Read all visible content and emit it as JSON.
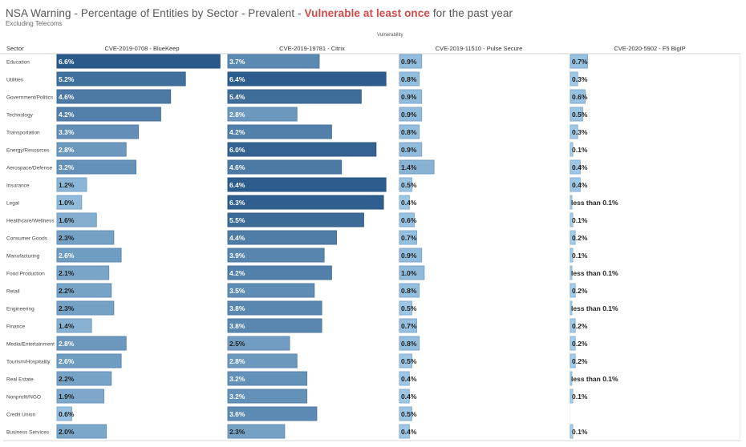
{
  "title": {
    "prefix": "NSA Warning - Percentage of Entities by Sector - Prevalent - ",
    "highlight": "Vulnerable at least once",
    "suffix": " for the past year",
    "highlight_color": "#d04a47"
  },
  "subtitle": "Excluding Telecoms",
  "column_group_label": "Vulnerability",
  "row_header": "Sector",
  "chart_data": {
    "type": "bar",
    "orientation": "horizontal",
    "layout": "small-multiples",
    "title": "NSA Warning - Percentage of Entities by Sector - Prevalent - Vulnerable at least once for the past year",
    "subtitle": "Excluding Telecoms",
    "xlabel": "Vulnerability",
    "ylabel": "Sector",
    "unit": "%",
    "color_scale": {
      "low": "#a9d2ee",
      "high": "#2a5a8a"
    },
    "grid": false,
    "categories": [
      "Education",
      "Utilities",
      "Government/Politics",
      "Technology",
      "Transportation",
      "Energy/Resources",
      "Aerospace/Defense",
      "Insurance",
      "Legal",
      "Healthcare/Wellness",
      "Consumer Goods",
      "Manufacturing",
      "Food Production",
      "Retail",
      "Engineering",
      "Finance",
      "Media/Entertainment",
      "Tourism/Hospitality",
      "Real Estate",
      "Nonprofit/NGO",
      "Credit Union",
      "Business Services"
    ],
    "series": [
      {
        "name": "CVE-2019-0708 - BlueKeep",
        "values": [
          6.6,
          5.2,
          4.6,
          4.2,
          3.3,
          2.8,
          3.2,
          1.2,
          1.0,
          1.6,
          2.3,
          2.6,
          2.1,
          2.2,
          2.3,
          1.4,
          2.8,
          2.6,
          2.2,
          1.9,
          0.6,
          2.0
        ],
        "labels": [
          "6.6%",
          "5.2%",
          "4.6%",
          "4.2%",
          "3.3%",
          "2.8%",
          "3.2%",
          "1.2%",
          "1.0%",
          "1.6%",
          "2.3%",
          "2.6%",
          "2.1%",
          "2.2%",
          "2.3%",
          "1.4%",
          "2.8%",
          "2.6%",
          "2.2%",
          "1.9%",
          "0.6%",
          "2.0%"
        ]
      },
      {
        "name": "CVE-2019-19781 - Citrix",
        "values": [
          3.7,
          6.4,
          5.4,
          2.8,
          4.2,
          6.0,
          4.6,
          6.4,
          6.3,
          5.5,
          4.4,
          3.9,
          4.2,
          3.5,
          3.8,
          3.8,
          2.5,
          2.8,
          3.2,
          3.2,
          3.6,
          2.3
        ],
        "labels": [
          "3.7%",
          "6.4%",
          "5.4%",
          "2.8%",
          "4.2%",
          "6.0%",
          "4.6%",
          "6.4%",
          "6.3%",
          "5.5%",
          "4.4%",
          "3.9%",
          "4.2%",
          "3.5%",
          "3.8%",
          "3.8%",
          "2.5%",
          "2.8%",
          "3.2%",
          "3.2%",
          "3.6%",
          "2.3%"
        ]
      },
      {
        "name": "CVE-2019-11510 - Pulse Secure",
        "values": [
          0.9,
          0.8,
          0.9,
          0.9,
          0.8,
          0.9,
          1.4,
          0.5,
          0.4,
          0.6,
          0.7,
          0.9,
          1.0,
          0.8,
          0.5,
          0.7,
          0.8,
          0.5,
          0.4,
          0.4,
          0.5,
          0.4
        ],
        "labels": [
          "0.9%",
          "0.8%",
          "0.9%",
          "0.9%",
          "0.8%",
          "0.9%",
          "1.4%",
          "0.5%",
          "0.4%",
          "0.6%",
          "0.7%",
          "0.9%",
          "1.0%",
          "0.8%",
          "0.5%",
          "0.7%",
          "0.8%",
          "0.5%",
          "0.4%",
          "0.4%",
          "0.5%",
          "0.4%"
        ]
      },
      {
        "name": "CVE-2020-5902 - F5 BigIP",
        "values": [
          0.7,
          0.3,
          0.6,
          0.5,
          0.3,
          0.1,
          0.4,
          0.4,
          0.05,
          0.1,
          0.2,
          0.1,
          0.05,
          0.2,
          0.05,
          0.2,
          0.2,
          0.2,
          0.05,
          0.1,
          null,
          0.1
        ],
        "labels": [
          "0.7%",
          "0.3%",
          "0.6%",
          "0.5%",
          "0.3%",
          "0.1%",
          "0.4%",
          "0.4%",
          "less than 0.1%",
          "0.1%",
          "0.2%",
          "0.1%",
          "less than 0.1%",
          "0.2%",
          "less than 0.1%",
          "0.2%",
          "0.2%",
          "0.2%",
          "less than 0.1%",
          "0.1%",
          "",
          "0.1%"
        ]
      }
    ]
  }
}
